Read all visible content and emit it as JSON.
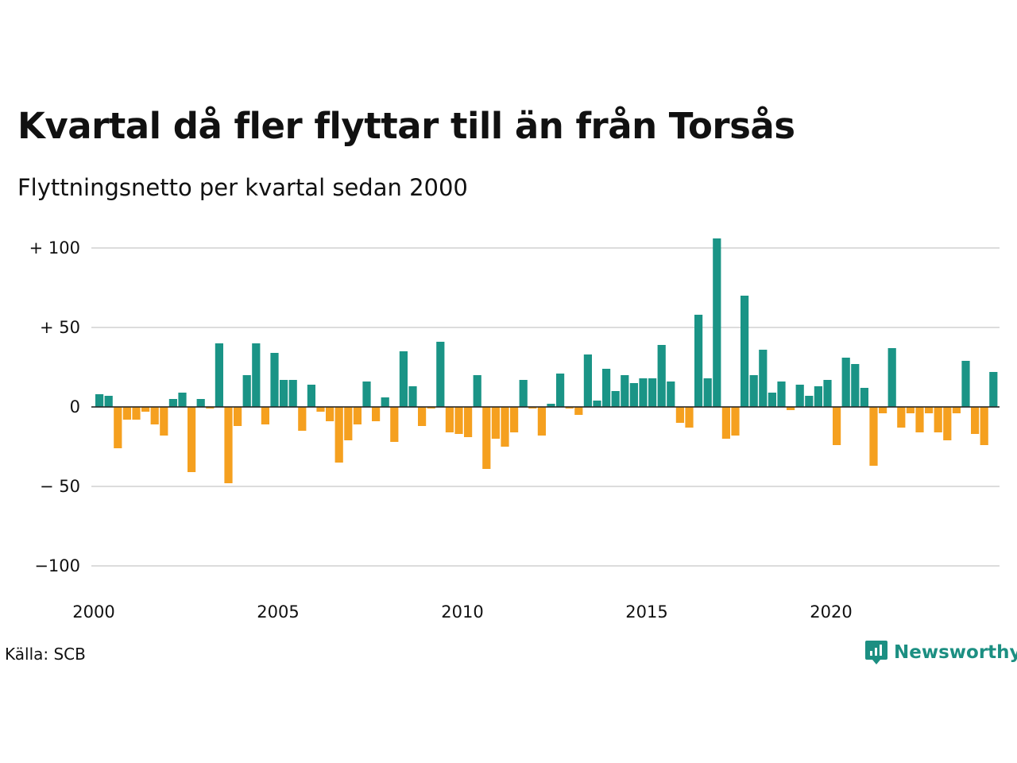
{
  "header": {
    "title": "Kvartal då fler flyttar till än från Torsås",
    "subtitle": "Flyttningsnetto per kvartal sedan 2000"
  },
  "footer": {
    "source": "Källa: SCB",
    "brand": "Newsworthy"
  },
  "colors": {
    "positive": "#1a9486",
    "negative": "#f5a01f",
    "grid": "#dcdcdc",
    "brand": "#1c8f82"
  },
  "chart_data": {
    "type": "bar",
    "title": "Kvartal då fler flyttar till än från Torsås",
    "subtitle": "Flyttningsnetto per kvartal sedan 2000",
    "xlabel": "",
    "ylabel": "",
    "start": "2000 Q1",
    "frequency": "quarterly",
    "ylim": [
      -100,
      105
    ],
    "yticks": [
      100,
      50,
      0,
      -50,
      -100
    ],
    "ytick_labels": [
      "+ 100",
      "+  50",
      "0",
      "− 50",
      "−100"
    ],
    "xticks": [
      2000,
      2005,
      2010,
      2015,
      2020
    ],
    "xtick_labels": [
      "2000",
      "2005",
      "2010",
      "2015",
      "2020"
    ],
    "grid": true,
    "values": [
      8,
      7,
      -26,
      -8,
      -8,
      -3,
      -11,
      -18,
      5,
      9,
      -41,
      5,
      -1,
      40,
      -48,
      -12,
      20,
      40,
      -11,
      34,
      17,
      17,
      -15,
      14,
      -3,
      -9,
      -35,
      -21,
      -11,
      16,
      -9,
      6,
      -22,
      35,
      13,
      -12,
      -1,
      41,
      -16,
      -17,
      -19,
      20,
      -39,
      -20,
      -25,
      -16,
      17,
      -1,
      -18,
      2,
      21,
      -1,
      -5,
      33,
      4,
      24,
      10,
      20,
      15,
      18,
      18,
      39,
      16,
      -10,
      -13,
      58,
      18,
      106,
      -20,
      -18,
      70,
      20,
      36,
      9,
      16,
      -2,
      14,
      7,
      13,
      17,
      -24,
      31,
      27,
      12,
      -37,
      -4,
      37,
      -13,
      -4,
      -16,
      -4,
      -16,
      -21,
      -4,
      29,
      -17,
      -24,
      22
    ]
  }
}
